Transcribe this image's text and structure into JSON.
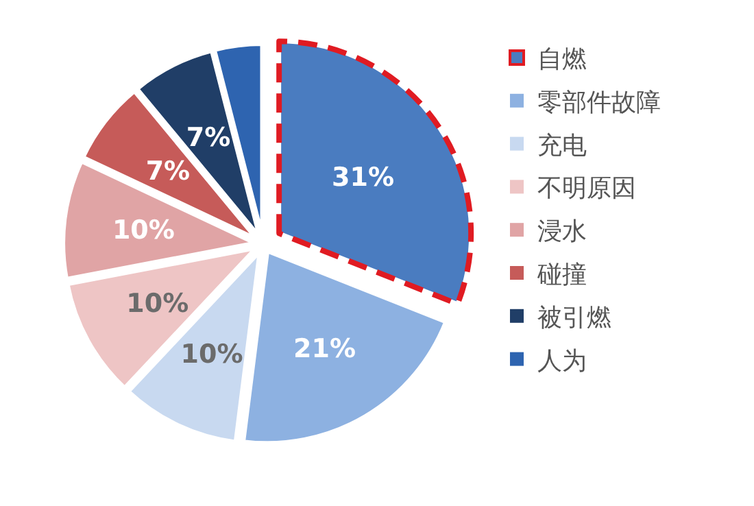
{
  "chart_data": {
    "type": "pie",
    "categories": [
      "自燃",
      "零部件故障",
      "充电",
      "不明原因",
      "浸水",
      "碰撞",
      "被引燃",
      "人为"
    ],
    "values": [
      31,
      21,
      10,
      10,
      10,
      7,
      7,
      4
    ],
    "colors": [
      "#4a7cc0",
      "#8db1e1",
      "#c8d9f0",
      "#eec5c5",
      "#e0a4a5",
      "#c65b59",
      "#203e67",
      "#2e64b0"
    ],
    "value_labels": [
      "31%",
      "21%",
      "10%",
      "10%",
      "10%",
      "7%",
      "7%",
      null
    ],
    "legend": "right"
  }
}
